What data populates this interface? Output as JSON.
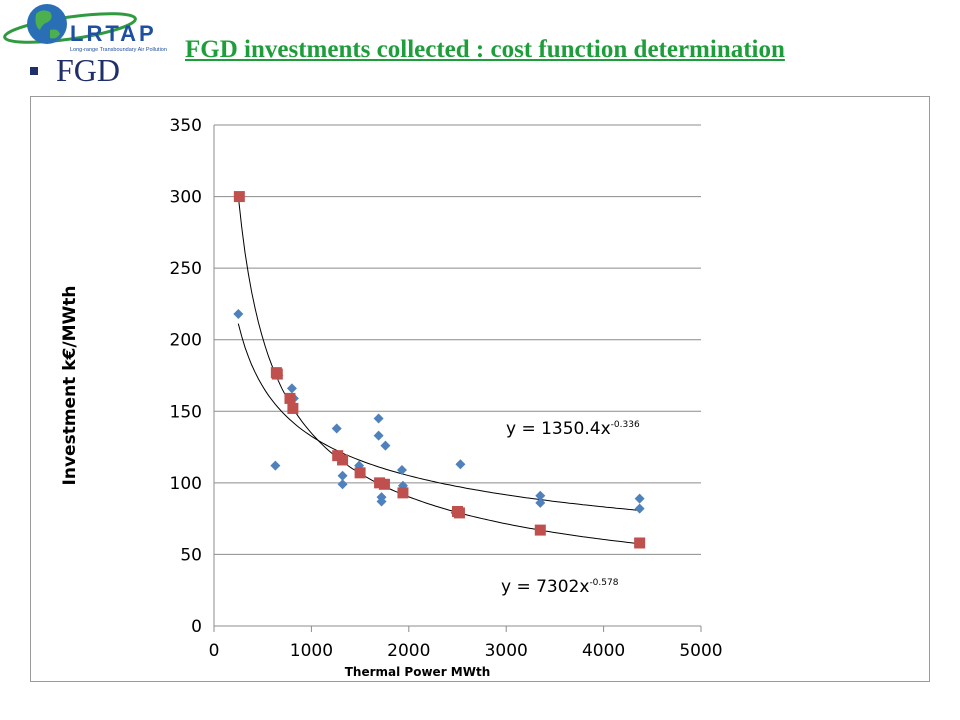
{
  "header": {
    "logo_text": "LRTAP",
    "logo_subtext": "Long-range Transboundary Air Pollution",
    "title": "FGD investments collected : cost function determination",
    "bullet": "FGD"
  },
  "colors": {
    "title": "#1e9e3b",
    "bullet": "#1f2f6a",
    "series_diamond": "#4f81bd",
    "series_square": "#c0504d"
  },
  "chart_data": {
    "type": "scatter",
    "title": "",
    "xlabel": "Thermal Power MWth",
    "ylabel": "Investment k€/MWth",
    "xlim": [
      0,
      5000
    ],
    "ylim": [
      0,
      350
    ],
    "xticks": [
      "0",
      "1000",
      "2000",
      "3000",
      "4000",
      "5000"
    ],
    "yticks": [
      "0",
      "50",
      "100",
      "150",
      "200",
      "250",
      "300",
      "350"
    ],
    "grid": "horizontal",
    "series": [
      {
        "marker": "diamond",
        "points": [
          [
            250,
            218
          ],
          [
            630,
            112
          ],
          [
            660,
            175
          ],
          [
            800,
            166
          ],
          [
            820,
            159
          ],
          [
            1260,
            138
          ],
          [
            1320,
            105
          ],
          [
            1320,
            99
          ],
          [
            1490,
            112
          ],
          [
            1690,
            145
          ],
          [
            1690,
            133
          ],
          [
            1720,
            90
          ],
          [
            1720,
            87
          ],
          [
            1760,
            126
          ],
          [
            1930,
            109
          ],
          [
            1940,
            98
          ],
          [
            2480,
            79
          ],
          [
            2530,
            113
          ],
          [
            3350,
            91
          ],
          [
            3350,
            86
          ],
          [
            4370,
            89
          ],
          [
            4370,
            82
          ]
        ],
        "trendline": {
          "a": 1350.4,
          "b": -0.336,
          "label": "y = 1350.4x",
          "exponent": "-0.336",
          "x_range": [
            250,
            4370
          ]
        }
      },
      {
        "marker": "square",
        "points": [
          [
            260,
            300
          ],
          [
            640,
            177
          ],
          [
            650,
            176
          ],
          [
            780,
            159
          ],
          [
            810,
            152
          ],
          [
            1270,
            119
          ],
          [
            1320,
            116
          ],
          [
            1500,
            107
          ],
          [
            1700,
            100
          ],
          [
            1750,
            99
          ],
          [
            1940,
            93
          ],
          [
            2500,
            80
          ],
          [
            2520,
            79
          ],
          [
            3350,
            67
          ],
          [
            4370,
            58
          ]
        ],
        "trendline": {
          "a": 7302,
          "b": -0.578,
          "label": "y = 7302x",
          "exponent": "-0.578",
          "x_range": [
            250,
            4370
          ]
        }
      }
    ]
  }
}
